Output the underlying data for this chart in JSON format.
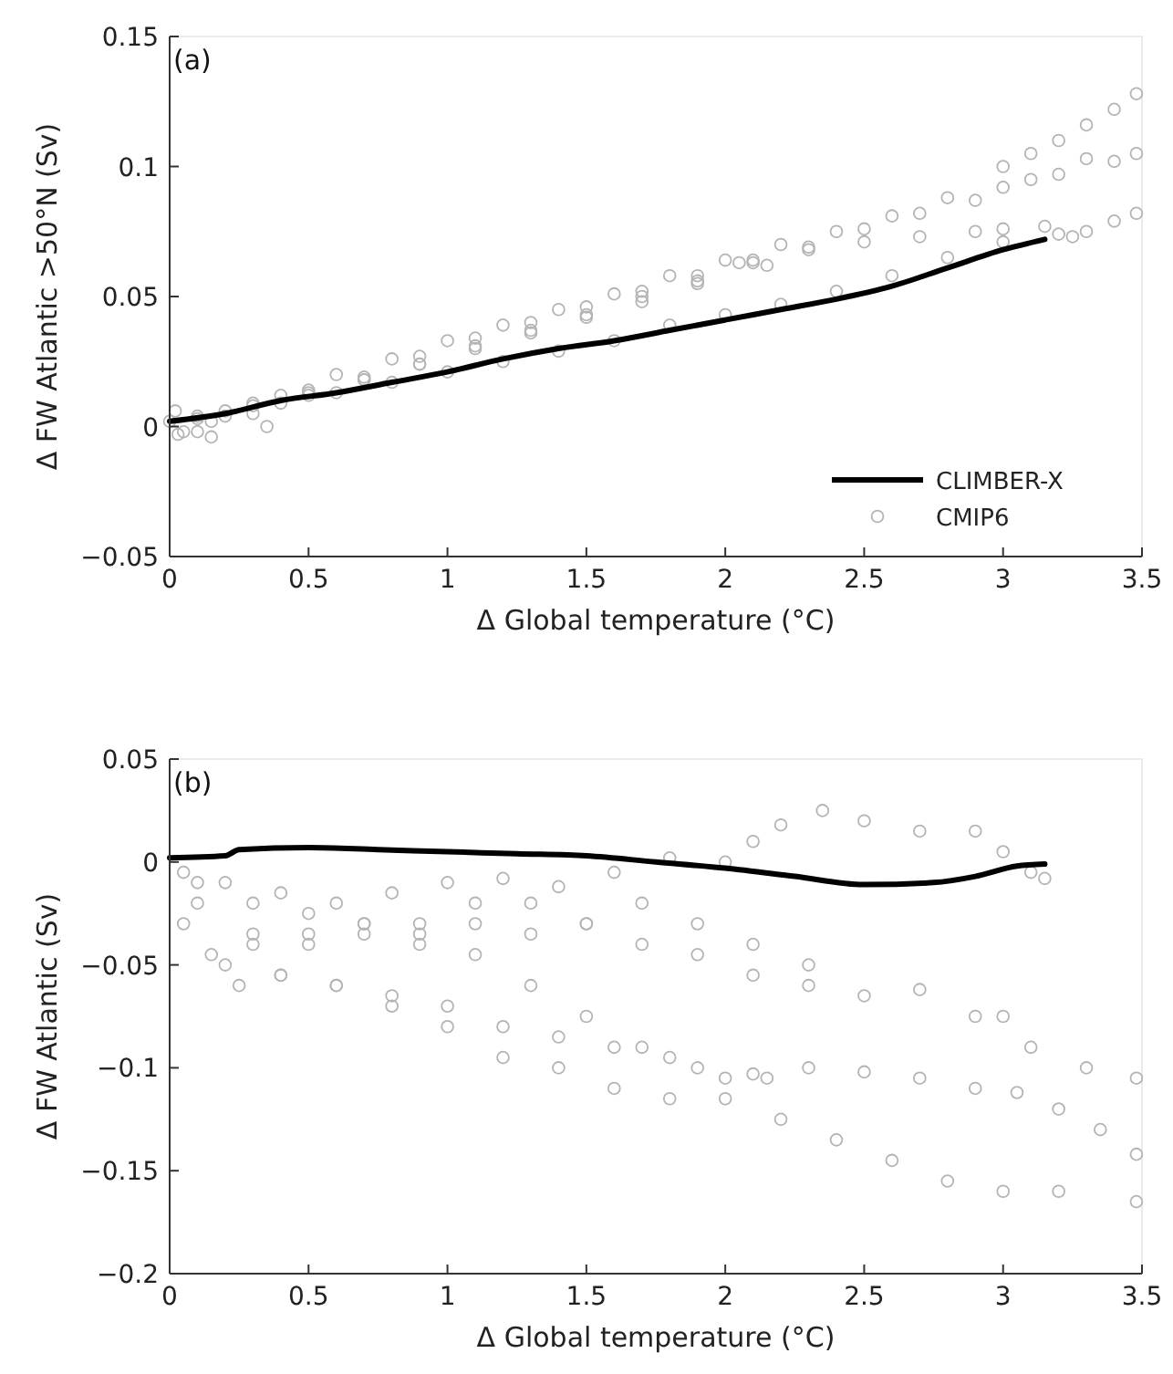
{
  "chart_data": [
    {
      "type": "scatter",
      "title": "(a)",
      "xlabel": "Δ Global temperature (°C)",
      "ylabel": "Δ FW Atlantic >50°N (Sv)",
      "xlim": [
        0,
        3.5
      ],
      "ylim": [
        -0.05,
        0.15
      ],
      "xticks": [
        0,
        0.5,
        1,
        1.5,
        2,
        2.5,
        3,
        3.5
      ],
      "yticks": [
        -0.05,
        0,
        0.05,
        0.1,
        0.15
      ],
      "grid": false,
      "legend": "bottom right",
      "series": [
        {
          "name": "CLIMBER-X",
          "type": "line",
          "color": "#000000",
          "marker": "none",
          "line_style": "solid",
          "x": [
            0,
            0.2,
            0.4,
            0.6,
            0.8,
            1.0,
            1.2,
            1.4,
            1.6,
            1.8,
            2.0,
            2.2,
            2.4,
            2.6,
            2.8,
            3.0,
            3.15
          ],
          "values": [
            0.002,
            0.005,
            0.01,
            0.013,
            0.017,
            0.021,
            0.026,
            0.03,
            0.033,
            0.037,
            0.041,
            0.045,
            0.049,
            0.054,
            0.061,
            0.068,
            0.072
          ]
        },
        {
          "name": "CMIP6",
          "color": "#b4b4b4",
          "marker": "circle",
          "x": [
            0,
            0.2,
            0.4,
            0.6,
            0.8,
            1.0,
            1.2,
            1.4,
            1.6,
            1.8,
            2.0,
            2.2,
            2.4,
            2.6,
            2.8,
            3.0,
            3.1,
            3.2,
            3.3,
            3.4,
            3.48,
            0.1,
            0.3,
            0.5,
            0.7,
            0.9,
            1.1,
            1.3,
            1.5,
            1.7,
            1.9,
            2.1,
            2.3,
            2.5,
            2.7,
            2.9,
            3.0,
            3.1,
            3.2,
            3.3,
            3.4,
            3.48,
            0.1,
            0.3,
            0.5,
            0.7,
            0.9,
            1.1,
            1.3,
            1.5,
            1.7,
            1.9,
            2.1,
            2.3,
            2.5,
            2.7,
            2.9,
            3.0,
            3.15,
            3.25,
            0.2,
            0.4,
            0.6,
            0.8,
            1.0,
            1.2,
            1.4,
            1.6,
            1.8,
            2.0,
            2.2,
            2.4,
            2.6,
            2.8,
            3.0,
            3.2,
            3.3,
            3.4,
            3.48,
            0.05,
            0.15,
            0.3,
            0.5,
            0.7,
            0.9,
            1.1,
            1.3,
            1.5,
            1.7,
            1.9,
            2.05,
            2.15,
            0.02,
            0.03,
            0.1,
            0.15,
            0.35
          ],
          "values": [
            0.002,
            0.006,
            0.012,
            0.02,
            0.026,
            0.033,
            0.039,
            0.045,
            0.051,
            0.058,
            0.064,
            0.07,
            0.075,
            0.081,
            0.088,
            0.1,
            0.105,
            0.11,
            0.116,
            0.122,
            0.128,
            0.004,
            0.009,
            0.014,
            0.019,
            0.027,
            0.034,
            0.04,
            0.046,
            0.052,
            0.058,
            0.064,
            0.069,
            0.076,
            0.082,
            0.087,
            0.092,
            0.095,
            0.097,
            0.103,
            0.102,
            0.105,
            0.003,
            0.008,
            0.013,
            0.018,
            0.024,
            0.03,
            0.036,
            0.042,
            0.048,
            0.055,
            0.063,
            0.068,
            0.071,
            0.073,
            0.075,
            0.076,
            0.077,
            0.073,
            0.004,
            0.009,
            0.013,
            0.017,
            0.021,
            0.025,
            0.029,
            0.033,
            0.039,
            0.043,
            0.047,
            0.052,
            0.058,
            0.065,
            0.071,
            0.074,
            0.075,
            0.079,
            0.082,
            -0.002,
            0.002,
            0.005,
            0.012,
            0.018,
            0.024,
            0.031,
            0.037,
            0.043,
            0.05,
            0.056,
            0.063,
            0.062,
            0.006,
            -0.003,
            -0.002,
            -0.004,
            0.0
          ]
        }
      ]
    },
    {
      "type": "scatter",
      "title": "(b)",
      "xlabel": "Δ Global temperature (°C)",
      "ylabel": "Δ FW Atlantic (Sv)",
      "xlim": [
        0,
        3.5
      ],
      "ylim": [
        -0.2,
        0.05
      ],
      "xticks": [
        0,
        0.5,
        1,
        1.5,
        2,
        2.5,
        3,
        3.5
      ],
      "yticks": [
        -0.2,
        -0.15,
        -0.1,
        -0.05,
        0,
        0.05
      ],
      "grid": false,
      "legend": false,
      "series": [
        {
          "type": "line",
          "color": "#000000",
          "marker": "none",
          "line_style": "solid",
          "x": [
            0,
            0.2,
            0.25,
            0.5,
            0.75,
            1.0,
            1.25,
            1.5,
            1.75,
            2.0,
            2.25,
            2.5,
            2.75,
            2.9,
            3.05,
            3.15
          ],
          "values": [
            0.002,
            0.003,
            0.006,
            0.007,
            0.006,
            0.005,
            0.004,
            0.003,
            0.0,
            -0.003,
            -0.007,
            -0.011,
            -0.01,
            -0.007,
            -0.002,
            -0.001
          ]
        },
        {
          "color": "#b4b4b4",
          "marker": "circle",
          "x": [
            0.05,
            0.2,
            0.4,
            0.6,
            0.8,
            1.0,
            1.2,
            1.4,
            1.6,
            1.8,
            2.0,
            2.1,
            2.2,
            2.35,
            2.5,
            2.7,
            2.9,
            3.0,
            3.1,
            3.15,
            0.1,
            0.3,
            0.5,
            0.7,
            0.9,
            1.1,
            1.3,
            1.5,
            1.7,
            1.9,
            2.1,
            2.3,
            2.5,
            2.7,
            2.9,
            3.0,
            3.1,
            3.3,
            3.48,
            0.1,
            0.3,
            0.5,
            0.7,
            0.9,
            1.1,
            1.3,
            1.5,
            1.7,
            1.9,
            2.1,
            2.3,
            2.5,
            2.7,
            2.9,
            3.05,
            3.2,
            3.35,
            3.48,
            0.2,
            0.4,
            0.6,
            0.8,
            1.0,
            1.2,
            1.4,
            1.6,
            1.8,
            2.0,
            2.2,
            2.4,
            2.6,
            2.8,
            3.0,
            3.2,
            3.48,
            0.05,
            0.15,
            0.25,
            0.4,
            0.6,
            0.8,
            1.0,
            1.2,
            1.4,
            1.6,
            1.8,
            2.0,
            2.15,
            0.3,
            0.5,
            0.7,
            0.9,
            1.1,
            1.3,
            1.5,
            1.7,
            1.9,
            2.1,
            2.3
          ],
          "values": [
            -0.005,
            -0.01,
            -0.015,
            -0.02,
            -0.015,
            -0.01,
            -0.008,
            -0.012,
            -0.005,
            0.002,
            0.0,
            0.01,
            0.018,
            0.025,
            0.02,
            0.015,
            0.015,
            0.005,
            -0.005,
            -0.008,
            -0.02,
            -0.035,
            -0.035,
            -0.03,
            -0.03,
            -0.02,
            -0.02,
            -0.03,
            -0.04,
            -0.045,
            -0.055,
            -0.06,
            -0.065,
            -0.062,
            -0.075,
            -0.075,
            -0.09,
            -0.1,
            -0.105,
            -0.01,
            -0.02,
            -0.025,
            -0.03,
            -0.035,
            -0.045,
            -0.06,
            -0.075,
            -0.09,
            -0.1,
            -0.103,
            -0.1,
            -0.102,
            -0.105,
            -0.11,
            -0.112,
            -0.12,
            -0.13,
            -0.142,
            -0.05,
            -0.055,
            -0.06,
            -0.07,
            -0.08,
            -0.095,
            -0.1,
            -0.11,
            -0.115,
            -0.115,
            -0.125,
            -0.135,
            -0.145,
            -0.155,
            -0.16,
            -0.16,
            -0.165,
            -0.03,
            -0.045,
            -0.06,
            -0.055,
            -0.06,
            -0.065,
            -0.07,
            -0.08,
            -0.085,
            -0.09,
            -0.095,
            -0.105,
            -0.105,
            -0.04,
            -0.04,
            -0.035,
            -0.04,
            -0.03,
            -0.035,
            -0.03,
            -0.02,
            -0.03,
            -0.04,
            -0.05
          ]
        }
      ]
    }
  ]
}
